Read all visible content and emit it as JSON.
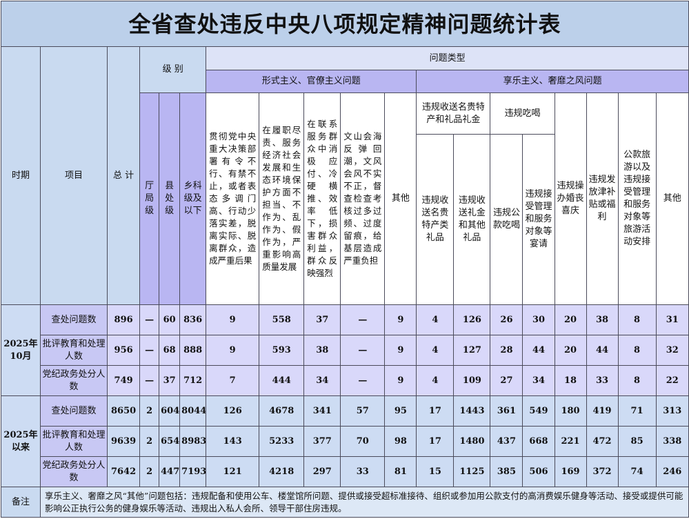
{
  "title": "全省查处违反中央八项规定精神问题统计表",
  "header": {
    "period": "时期",
    "item": "项目",
    "total": "总 计",
    "level": "级 别",
    "levels": [
      "厅局级",
      "县处级",
      "乡科级及以下"
    ],
    "problem_type": "问题类型",
    "formalism": {
      "title": "形式主义、官僚主义问题",
      "columns": [
        "贯彻党中央重大决策部署有令不行、有禁不止，或者表态多调门高、行动少落实差，脱离实际、脱离群众，造成严重后果",
        "在履职尽责、服务经济社会发展和生态环境保护方面不担当、不作为、乱作为、假作为，严重影响高质量发展",
        "在联系服务群众中消极应付、冷硬横推、效率低下，损害群众利益，群众反映强烈",
        "文山会海反弹回潮，文风会风不实不正，督查检查考核过多过频、过度留痕，给基层造成严重负担",
        "其他"
      ]
    },
    "hedonism": {
      "title": "享乐主义、奢靡之风问题",
      "gifts": {
        "title": "违规收送名贵特产和礼品礼金",
        "columns": [
          "违规收送名贵特产类礼品",
          "违规收送礼金和其他礼品"
        ]
      },
      "dining": {
        "title": "违规吃喝",
        "columns": [
          "违规公款吃喝",
          "违规接受管理和服务对象等宴请"
        ]
      },
      "columns": [
        "违规操办婚丧喜庆",
        "违规发放津补贴或福利",
        "公款旅游以及违规接受管理和服务对象等旅游活动安排",
        "其他"
      ]
    }
  },
  "groups": [
    {
      "period": "2025年10月",
      "rows": [
        {
          "item": "查处问题数",
          "values": [
            896,
            "—",
            60,
            836,
            9,
            558,
            37,
            "—",
            9,
            4,
            126,
            26,
            30,
            20,
            38,
            8,
            31
          ]
        },
        {
          "item": "批评教育和处理人数",
          "values": [
            956,
            "—",
            68,
            888,
            9,
            593,
            38,
            "—",
            9,
            4,
            127,
            28,
            44,
            20,
            44,
            8,
            32
          ]
        },
        {
          "item": "党纪政务处分人数",
          "values": [
            749,
            "—",
            37,
            712,
            7,
            444,
            34,
            "—",
            9,
            4,
            109,
            27,
            34,
            18,
            33,
            8,
            22
          ]
        }
      ]
    },
    {
      "period": "2025年以来",
      "rows": [
        {
          "item": "查处问题数",
          "values": [
            8650,
            2,
            604,
            8044,
            126,
            4678,
            341,
            57,
            95,
            17,
            1443,
            361,
            549,
            180,
            419,
            71,
            313
          ]
        },
        {
          "item": "批评教育和处理人数",
          "values": [
            9639,
            2,
            654,
            8983,
            143,
            5233,
            377,
            70,
            98,
            17,
            1480,
            437,
            668,
            221,
            472,
            85,
            338
          ]
        },
        {
          "item": "党纪政务处分人数",
          "values": [
            7642,
            2,
            447,
            7193,
            121,
            4218,
            297,
            33,
            81,
            15,
            1125,
            385,
            506,
            169,
            372,
            74,
            246
          ]
        }
      ]
    }
  ],
  "note": {
    "label": "备注",
    "text": "享乐主义、奢靡之风“其他”问题包括：违规配备和使用公车、楼堂馆所问题、提供或接受超标准接待、组织或参加用公款支付的高消费娱乐健身等活动、接受或提供可能影响公正执行公务的健身娱乐等活动、违规出入私人会所、领导干部住房违规。"
  }
}
